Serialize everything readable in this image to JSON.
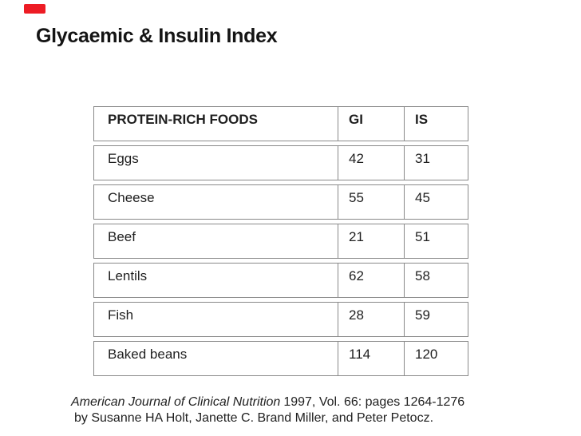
{
  "title": "Glycaemic & Insulin Index",
  "chart_data": {
    "type": "table",
    "title": "Glycaemic & Insulin Index",
    "columns": [
      "PROTEIN-RICH FOODS",
      "GI",
      "IS"
    ],
    "rows": [
      [
        "Eggs",
        42,
        31
      ],
      [
        "Cheese",
        55,
        45
      ],
      [
        "Beef",
        21,
        51
      ],
      [
        "Lentils",
        62,
        58
      ],
      [
        "Fish",
        28,
        59
      ],
      [
        "Baked beans",
        114,
        120
      ]
    ]
  },
  "citation": {
    "journal_italic": "American Journal of Clinical Nutrition",
    "reference": "1997, Vol. 66: pages 1264-1276",
    "authors_line": "by Susanne HA Holt, Janette C. Brand Miller, and Peter Petocz."
  },
  "colors": {
    "border": "#8a8a8a",
    "text": "#1f1f1f",
    "red_mark": "#ed1c24"
  }
}
